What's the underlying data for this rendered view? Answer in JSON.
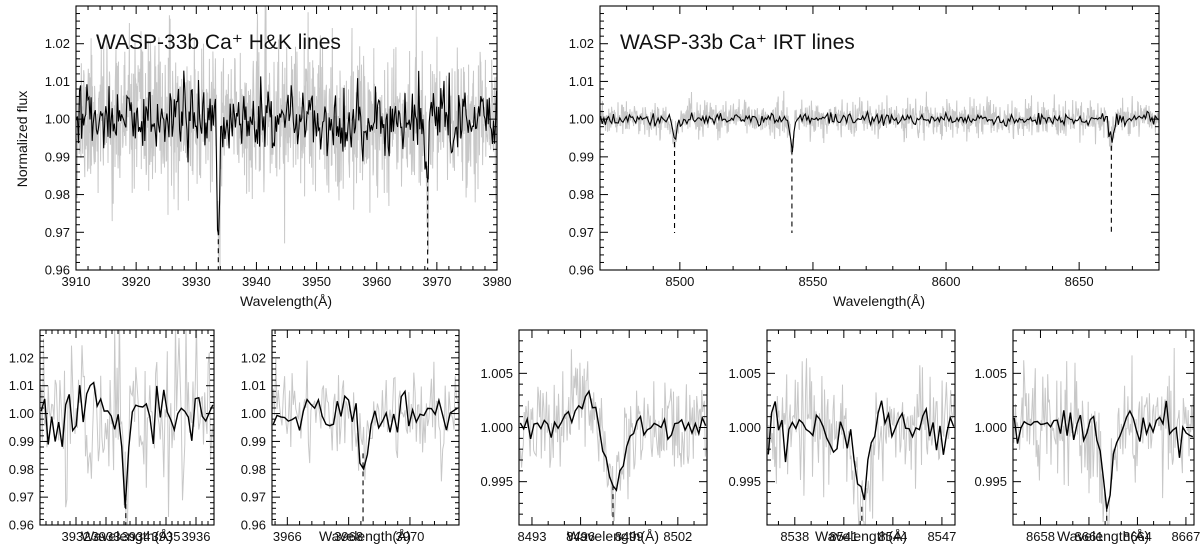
{
  "figure": {
    "description_text": "",
    "colors": {
      "raw": "#c8c8c8",
      "binned": "#000000",
      "marker": "#000000",
      "frame": "#000000"
    }
  },
  "chart_data": [
    {
      "id": "hk-wide",
      "type": "line",
      "title": "WASP-33b Ca⁺ H&K lines",
      "xlabel": "Wavelength(Å)",
      "ylabel": "Normalized flux",
      "xlim": [
        3910,
        3980
      ],
      "ylim": [
        0.96,
        1.03
      ],
      "xticks": [
        3910,
        3920,
        3930,
        3940,
        3950,
        3960,
        3970,
        3980
      ],
      "xtick_labels": [
        "3910",
        "3920",
        "3930",
        "3940",
        "3950",
        "3960",
        "3970",
        "3980"
      ],
      "yticks": [
        0.96,
        0.97,
        0.98,
        0.99,
        1.0,
        1.01,
        1.02
      ],
      "ytick_labels": [
        "0.96",
        "0.97",
        "0.98",
        "0.99",
        "1.00",
        "1.01",
        "1.02"
      ],
      "line_centers": [
        3933.66,
        3968.47
      ],
      "dip_depths": [
        -0.03,
        -0.016
      ],
      "noise": {
        "raw": 0.0095,
        "binned": 0.0045,
        "seed": 11
      },
      "series": [
        {
          "name": "raw spectrum",
          "color": "#c8c8c8"
        },
        {
          "name": "binned spectrum",
          "color": "#000000"
        }
      ]
    },
    {
      "id": "irt-wide",
      "type": "line",
      "title": "WASP-33b Ca⁺ IRT lines",
      "xlabel": "Wavelength(Å)",
      "ylabel": "",
      "xlim": [
        8470,
        8680
      ],
      "ylim": [
        0.96,
        1.03
      ],
      "xticks": [
        8500,
        8550,
        8600,
        8650
      ],
      "xtick_labels": [
        "8500",
        "8550",
        "8600",
        "8650"
      ],
      "yticks": [
        0.96,
        0.97,
        0.98,
        0.99,
        1.0,
        1.01,
        1.02
      ],
      "ytick_labels": [
        "0.96",
        "0.97",
        "0.98",
        "0.99",
        "1.00",
        "1.01",
        "1.02"
      ],
      "line_centers": [
        8498.0,
        8542.1,
        8662.1
      ],
      "dip_depths": [
        -0.005,
        -0.007,
        -0.006
      ],
      "noise": {
        "raw": 0.0022,
        "binned": 0.0008,
        "seed": 23
      },
      "series": [
        {
          "name": "raw spectrum",
          "color": "#c8c8c8"
        },
        {
          "name": "binned spectrum",
          "color": "#000000"
        }
      ]
    },
    {
      "id": "zoom-3933",
      "type": "line",
      "xlabel": "Wavelength(Å)",
      "xlim": [
        3930.8,
        3936.6
      ],
      "ylim": [
        0.96,
        1.03
      ],
      "xticks": [
        3932,
        3933,
        3934,
        3935,
        3936
      ],
      "xtick_labels": [
        "3932",
        "3933",
        "3934",
        "3935",
        "3936"
      ],
      "yticks": [
        0.96,
        0.97,
        0.98,
        0.99,
        1.0,
        1.01,
        1.02
      ],
      "ytick_labels": [
        "0.96",
        "0.97",
        "0.98",
        "0.99",
        "1.00",
        "1.01",
        "1.02"
      ],
      "line_centers": [
        3933.66
      ],
      "dip_depths": [
        -0.03
      ],
      "dip_sigma": 0.08,
      "noise": {
        "raw": 0.013,
        "binned": 0.0055,
        "seed": 31
      },
      "series": [
        {
          "name": "raw spectrum",
          "color": "#c8c8c8"
        },
        {
          "name": "binned spectrum",
          "color": "#000000"
        }
      ]
    },
    {
      "id": "zoom-3968",
      "type": "line",
      "xlabel": "Wavelength(Å)",
      "xlim": [
        3965.5,
        3971.6
      ],
      "ylim": [
        0.96,
        1.03
      ],
      "xticks": [
        3966,
        3968,
        3970
      ],
      "xtick_labels": [
        "3966",
        "3968",
        "3970"
      ],
      "yticks": [
        0.96,
        0.97,
        0.98,
        0.99,
        1.0,
        1.01,
        1.02
      ],
      "ytick_labels": [
        "0.96",
        "0.97",
        "0.98",
        "0.99",
        "1.00",
        "1.01",
        "1.02"
      ],
      "line_centers": [
        3968.47
      ],
      "dip_depths": [
        -0.015
      ],
      "dip_sigma": 0.15,
      "noise": {
        "raw": 0.0085,
        "binned": 0.0035,
        "seed": 43
      },
      "series": [
        {
          "name": "raw spectrum",
          "color": "#c8c8c8"
        },
        {
          "name": "binned spectrum",
          "color": "#000000"
        }
      ]
    },
    {
      "id": "zoom-8498",
      "type": "line",
      "xlabel": "Wavelength(Å)",
      "xlim": [
        8492.2,
        8503.8
      ],
      "ylim": [
        0.991,
        1.009
      ],
      "xticks": [
        8493,
        8496,
        8499,
        8502
      ],
      "xtick_labels": [
        "8493",
        "8496",
        "8499",
        "8502"
      ],
      "yticks": [
        0.995,
        1.0,
        1.005
      ],
      "ytick_labels": [
        "0.995",
        "1.000",
        "1.005"
      ],
      "line_centers": [
        8498.0
      ],
      "dip_depths": [
        -0.0055
      ],
      "dip_sigma": 0.55,
      "bump": {
        "center": 8496.5,
        "amplitude": 0.0028,
        "sigma": 0.8
      },
      "noise": {
        "raw": 0.0022,
        "binned": 0.0006,
        "seed": 57
      },
      "series": [
        {
          "name": "raw spectrum",
          "color": "#c8c8c8"
        },
        {
          "name": "binned spectrum",
          "color": "#000000"
        }
      ]
    },
    {
      "id": "zoom-8542",
      "type": "line",
      "xlabel": "Wavelength(Å)",
      "xlim": [
        8536.3,
        8547.8
      ],
      "ylim": [
        0.991,
        1.009
      ],
      "xticks": [
        8538,
        8541,
        8544,
        8547
      ],
      "xtick_labels": [
        "8538",
        "8541",
        "8544",
        "8547"
      ],
      "yticks": [
        0.995,
        1.0,
        1.005
      ],
      "ytick_labels": [
        "0.995",
        "1.000",
        "1.005"
      ],
      "line_centers": [
        8542.1
      ],
      "dip_depths": [
        -0.0075
      ],
      "dip_sigma": 0.4,
      "noise": {
        "raw": 0.0024,
        "binned": 0.0012,
        "seed": 67
      },
      "series": [
        {
          "name": "raw spectrum",
          "color": "#c8c8c8"
        },
        {
          "name": "binned spectrum",
          "color": "#000000"
        }
      ]
    },
    {
      "id": "zoom-8662",
      "type": "line",
      "xlabel": "Wavelength(Å)",
      "xlim": [
        8656.3,
        8667.5
      ],
      "ylim": [
        0.991,
        1.009
      ],
      "xticks": [
        8658,
        8661,
        8664,
        8667
      ],
      "xtick_labels": [
        "8658",
        "8661",
        "8664",
        "8667"
      ],
      "yticks": [
        0.995,
        1.0,
        1.005
      ],
      "ytick_labels": [
        "0.995",
        "1.000",
        "1.005"
      ],
      "line_centers": [
        8662.1
      ],
      "dip_depths": [
        -0.0075
      ],
      "dip_sigma": 0.3,
      "noise": {
        "raw": 0.0024,
        "binned": 0.0009,
        "seed": 79
      },
      "series": [
        {
          "name": "raw spectrum",
          "color": "#c8c8c8"
        },
        {
          "name": "binned spectrum",
          "color": "#000000"
        }
      ]
    }
  ]
}
